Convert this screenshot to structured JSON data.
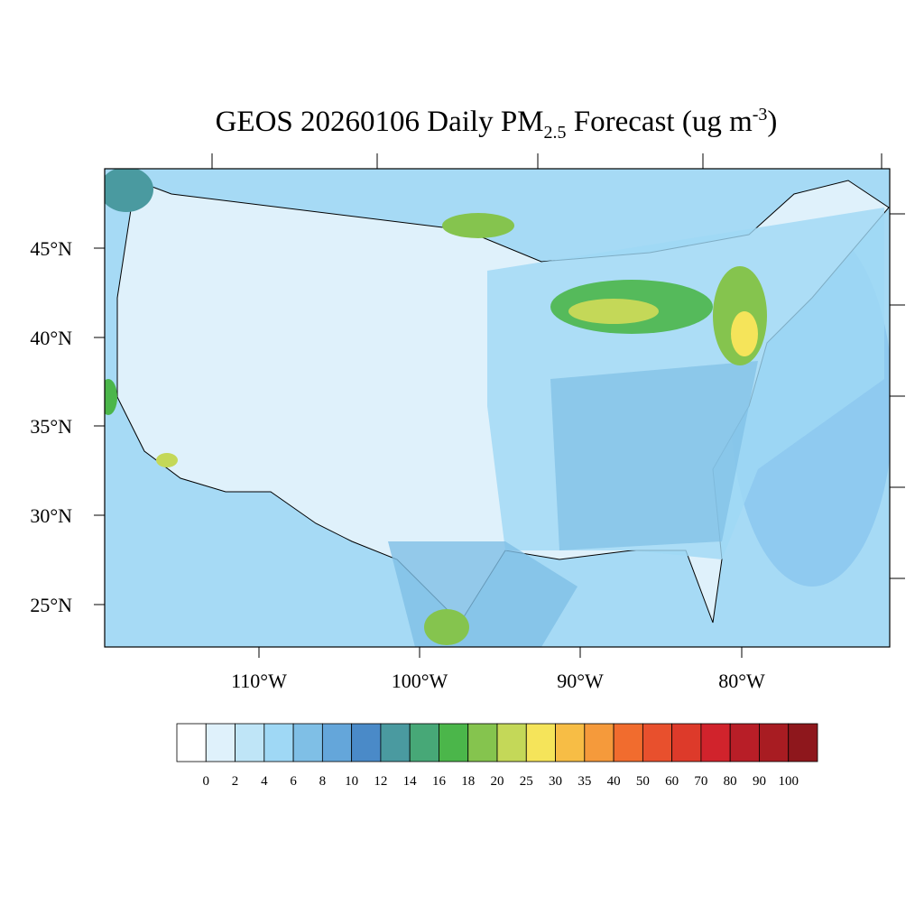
{
  "title": {
    "main": "GEOS 20260106 Daily PM",
    "sub": "2.5",
    "mid": " Forecast (ug m",
    "sup": "-3",
    "end": ")"
  },
  "lat_labels": [
    "45°N",
    "40°N",
    "35°N",
    "30°N",
    "25°N"
  ],
  "lon_labels": [
    "110°W",
    "100°W",
    "90°W",
    "80°W"
  ],
  "colorbar": {
    "levels": [
      0,
      2,
      4,
      6,
      8,
      10,
      12,
      14,
      16,
      18,
      20,
      25,
      30,
      35,
      40,
      50,
      60,
      70,
      80,
      90,
      100
    ],
    "colors": [
      "#ffffff",
      "#dff1fb",
      "#bfe5f7",
      "#9fd8f5",
      "#7fbfe6",
      "#64a6da",
      "#4a8ac8",
      "#4a9aa0",
      "#47a877",
      "#4bb64a",
      "#85c44e",
      "#c4d858",
      "#f5e45a",
      "#f7bd45",
      "#f59a3b",
      "#f16c2e",
      "#e8502d",
      "#dd3a2a",
      "#d1232c",
      "#b81e27",
      "#a81c22",
      "#8e171c"
    ]
  }
}
